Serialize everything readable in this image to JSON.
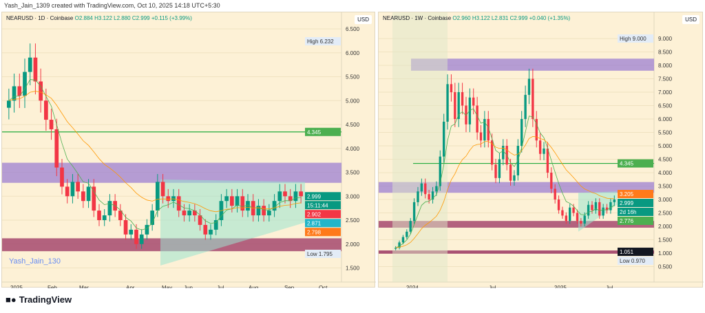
{
  "credit": "Yash_Jain_1309 created with TradingView.com, Oct 10, 2025 14:18 UTC+5:30",
  "left": {
    "symbol": "NEARUSD · 1D · Coinbase",
    "o": "O2.884",
    "h": "H3.122",
    "l": "L2.880",
    "c": "C2.999",
    "chg": "+0.115 (+3.99%)",
    "currency": "USD",
    "watermark": "Yash_Jain_130",
    "price_ticks": [
      "6.500",
      "6.000",
      "5.500",
      "5.000",
      "4.500",
      "4.000",
      "3.500",
      "3.000",
      "2.500",
      "2.000",
      "1.500"
    ],
    "time_ticks": [
      "2025",
      "Feb",
      "Mar",
      "Apr",
      "May",
      "Jun",
      "Jul",
      "Aug",
      "Sep",
      "Oct"
    ],
    "high_label": "High",
    "high": "6.232",
    "low_label": "Low",
    "low": "1.795",
    "level": "4.345",
    "last": "2.999",
    "countdown": "15:11:44",
    "ma1": "2.902",
    "ma2": "2.871",
    "ma3": "2.798",
    "closes": [
      5.0,
      5.3,
      5.1,
      5.6,
      5.9,
      5.4,
      5.0,
      4.6,
      4.4,
      3.6,
      3.2,
      3.0,
      3.3,
      3.1,
      2.9,
      3.2,
      2.7,
      2.5,
      2.6,
      2.9,
      2.7,
      2.5,
      2.2,
      2.3,
      2.0,
      2.2,
      2.4,
      2.7,
      3.3,
      3.0,
      2.9,
      3.0,
      2.7,
      2.6,
      2.7,
      2.6,
      2.4,
      2.2,
      2.3,
      2.5,
      2.9,
      3.0,
      2.8,
      3.0,
      2.7,
      2.9,
      2.6,
      2.8,
      2.6,
      2.7,
      2.9,
      3.1,
      3.0,
      2.9,
      3.1,
      3.0
    ]
  },
  "right": {
    "symbol": "NEARUSD · 1W · Coinbase",
    "o": "O2.960",
    "h": "H3.122",
    "l": "L2.831",
    "c": "C2.999",
    "chg": "+0.040 (+1.35%)",
    "currency": "USD",
    "price_ticks": [
      "9.000",
      "8.500",
      "8.000",
      "7.500",
      "7.000",
      "6.500",
      "6.000",
      "5.500",
      "5.000",
      "4.500",
      "4.000",
      "3.500",
      "3.000",
      "2.500",
      "2.000",
      "1.500",
      "1.000",
      "0.500"
    ],
    "time_ticks": [
      "2024",
      "Jul",
      "2025",
      "Jul"
    ],
    "high_label": "High",
    "high": "9.000",
    "low_label": "Low",
    "low": "0.970",
    "level": "4.345",
    "ma1": "3.205",
    "last": "2.999",
    "countdown": "2d 16h",
    "ma2": "2.776",
    "support": "1.051",
    "closes": [
      1.2,
      1.4,
      1.6,
      1.8,
      2.2,
      2.9,
      3.3,
      3.6,
      3.2,
      3.0,
      3.3,
      3.5,
      4.6,
      5.9,
      7.3,
      7.0,
      6.0,
      7.0,
      6.5,
      5.8,
      6.8,
      6.5,
      5.5,
      5.2,
      6.0,
      5.2,
      4.3,
      3.8,
      4.5,
      5.0,
      4.3,
      3.7,
      3.9,
      5.0,
      6.0,
      6.9,
      7.5,
      6.0,
      5.2,
      4.7,
      4.9,
      4.0,
      3.4,
      3.0,
      2.6,
      2.4,
      2.2,
      2.7,
      2.5,
      2.2,
      2.1,
      2.4,
      2.8,
      2.6,
      2.9,
      2.4,
      2.7,
      2.6,
      2.9,
      3.0
    ]
  },
  "brand": "TradingView"
}
